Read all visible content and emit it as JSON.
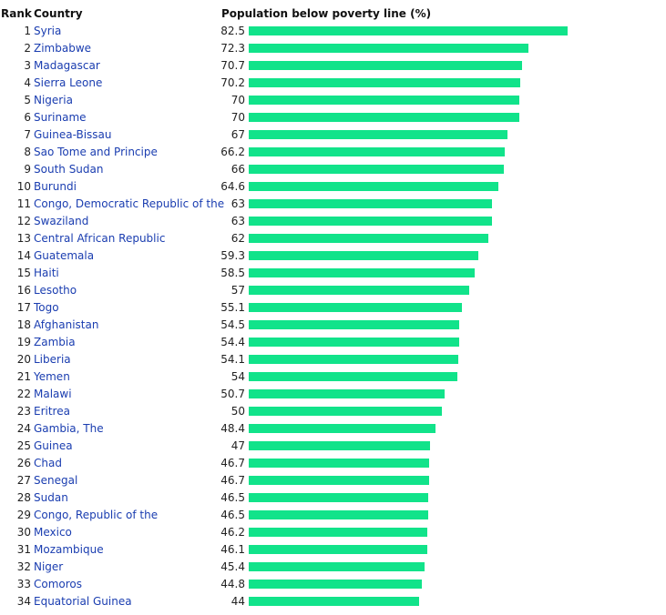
{
  "header": {
    "rank": "Rank",
    "country": "Country",
    "value": "Population below poverty line (%)"
  },
  "chart_data": {
    "type": "bar",
    "orientation": "horizontal",
    "title": "",
    "xlabel": "Population below poverty line (%)",
    "xlim": [
      0,
      82.5
    ],
    "grid": false,
    "bar_color": "#11e38a",
    "link_color": "#1a3db0",
    "ranks": [
      1,
      2,
      3,
      4,
      5,
      6,
      7,
      8,
      9,
      10,
      11,
      12,
      13,
      14,
      15,
      16,
      17,
      18,
      19,
      20,
      21,
      22,
      23,
      24,
      25,
      26,
      27,
      28,
      29,
      30,
      31,
      32,
      33,
      34
    ],
    "categories": [
      "Syria",
      "Zimbabwe",
      "Madagascar",
      "Sierra Leone",
      "Nigeria",
      "Suriname",
      "Guinea-Bissau",
      "Sao Tome and Principe",
      "South Sudan",
      "Burundi",
      "Congo, Democratic Republic of the",
      "Swaziland",
      "Central African Republic",
      "Guatemala",
      "Haiti",
      "Lesotho",
      "Togo",
      "Afghanistan",
      "Zambia",
      "Liberia",
      "Yemen",
      "Malawi",
      "Eritrea",
      "Gambia, The",
      "Guinea",
      "Chad",
      "Senegal",
      "Sudan",
      "Congo, Republic of the",
      "Mexico",
      "Mozambique",
      "Niger",
      "Comoros",
      "Equatorial Guinea"
    ],
    "values": [
      82.5,
      72.3,
      70.7,
      70.2,
      70,
      70,
      67,
      66.2,
      66,
      64.6,
      63,
      63,
      62,
      59.3,
      58.5,
      57,
      55.1,
      54.5,
      54.4,
      54.1,
      54,
      50.7,
      50,
      48.4,
      47,
      46.7,
      46.7,
      46.5,
      46.5,
      46.2,
      46.1,
      45.4,
      44.8,
      44
    ]
  }
}
